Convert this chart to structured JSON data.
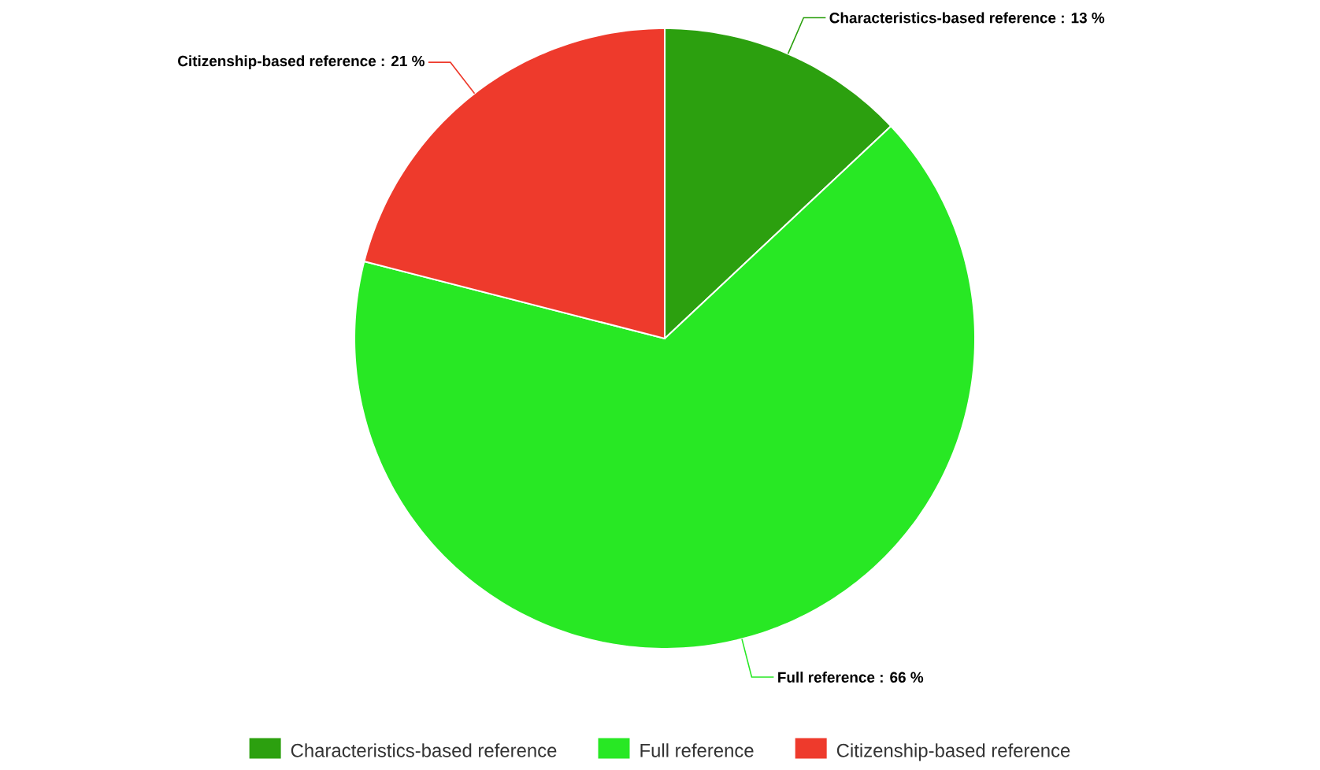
{
  "chart_data": {
    "type": "pie",
    "categories": [
      "Characteristics-based reference",
      "Full reference",
      "Citizenship-based reference"
    ],
    "values": [
      13,
      66,
      21
    ],
    "colors": [
      "#2ca00f",
      "#28e824",
      "#ee3a2c"
    ],
    "value_labels": [
      "Characteristics-based reference : 13 %",
      "Full reference : 66 %",
      "Citizenship-based reference : 21 %"
    ],
    "legend": "bottom"
  }
}
